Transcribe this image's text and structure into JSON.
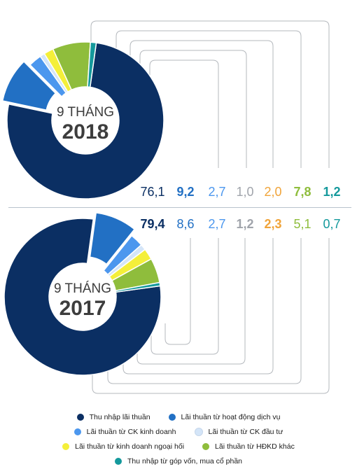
{
  "chart_data": [
    {
      "type": "pie",
      "period_label": "9 THÁNG",
      "year": "2018",
      "categories": [
        "Thu nhập lãi thuần",
        "Lãi thuần từ hoạt động dịch vụ",
        "Lãi thuần từ CK kinh doanh",
        "Lãi thuần từ CK đầu tư",
        "Lãi thuần từ kinh doanh ngoại hối",
        "Lãi thuần từ HĐKD khác",
        "Thu nhập từ góp vốn, mua cổ phần"
      ],
      "values": [
        76.1,
        9.2,
        2.7,
        1.0,
        2.0,
        7.8,
        1.2
      ],
      "value_labels": [
        "76,1",
        "9,2",
        "2,7",
        "1,0",
        "2,0",
        "7,8",
        "1,2"
      ]
    },
    {
      "type": "pie",
      "period_label": "9 THÁNG",
      "year": "2017",
      "categories": [
        "Thu nhập lãi thuần",
        "Lãi thuần từ hoạt động dịch vụ",
        "Lãi thuần từ CK kinh doanh",
        "Lãi thuần từ CK đầu tư",
        "Lãi thuần từ kinh doanh ngoại hối",
        "Lãi thuần từ HĐKD khác",
        "Thu nhập từ góp vốn, mua cổ phần"
      ],
      "values": [
        79.4,
        8.6,
        2.7,
        1.2,
        2.3,
        5.1,
        0.7
      ],
      "value_labels": [
        "79,4",
        "8,6",
        "2,7",
        "1,2",
        "2,3",
        "5,1",
        "0,7"
      ]
    }
  ],
  "colors": [
    "#0b2f63",
    "#2270c4",
    "#4c97ee",
    "#d4e5f8",
    "#f4ef3a",
    "#8fbd3c",
    "#14999c"
  ],
  "label_colors": [
    "#0b2f63",
    "#2270c4",
    "#4c97ee",
    "#a0a4ab",
    "#f0a43a",
    "#8fbd3c",
    "#14999c"
  ],
  "bold_2018": [
    false,
    true,
    false,
    false,
    false,
    true,
    true
  ],
  "bold_2017": [
    true,
    false,
    false,
    true,
    true,
    false,
    false
  ],
  "legend": {
    "rows": [
      [
        {
          "label": "Thu nhập lãi thuần",
          "color": "#0b2f63"
        },
        {
          "label": "Lãi thuần từ hoạt động dịch vụ",
          "color": "#2270c4"
        }
      ],
      [
        {
          "label": "Lãi thuần từ CK kinh doanh",
          "color": "#4c97ee"
        },
        {
          "label": "Lãi thuần từ CK đầu tư",
          "color": "#d4e5f8"
        }
      ],
      [
        {
          "label": "Lãi thuần từ kinh doanh ngoại hối",
          "color": "#f4ef3a"
        },
        {
          "label": "Lãi thuần từ HĐKD khác",
          "color": "#8fbd3c"
        }
      ],
      [
        {
          "label": "Thu nhập từ góp vốn, mua cổ phần",
          "color": "#14999c"
        }
      ]
    ]
  }
}
